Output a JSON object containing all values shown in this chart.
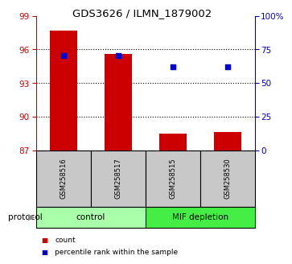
{
  "title": "GDS3626 / ILMN_1879002",
  "samples": [
    "GSM258516",
    "GSM258517",
    "GSM258515",
    "GSM258530"
  ],
  "red_bar_values": [
    97.7,
    95.6,
    88.5,
    88.6
  ],
  "blue_dot_pct": [
    70.5,
    70.5,
    62.0,
    62.0
  ],
  "ylim_left": [
    87,
    99
  ],
  "yticks_left": [
    87,
    90,
    93,
    96,
    99
  ],
  "ylim_right": [
    0,
    100
  ],
  "yticks_right": [
    0,
    25,
    50,
    75,
    100
  ],
  "yticklabels_right": [
    "0",
    "25",
    "50",
    "75",
    "100%"
  ],
  "left_axis_color": "#cc0000",
  "right_axis_color": "#0000cc",
  "bar_color": "#cc0000",
  "dot_color": "#0000cc",
  "groups": [
    {
      "label": "control",
      "samples": [
        0,
        1
      ],
      "color": "#aaffaa"
    },
    {
      "label": "MIF depletion",
      "samples": [
        2,
        3
      ],
      "color": "#44ee44"
    }
  ],
  "protocol_label": "protocol",
  "legend_items": [
    {
      "color": "#cc0000",
      "label": "count"
    },
    {
      "color": "#0000cc",
      "label": "percentile rank within the sample"
    }
  ],
  "bar_width": 0.5,
  "sample_box_color": "#c8c8c8",
  "background_color": "#ffffff"
}
